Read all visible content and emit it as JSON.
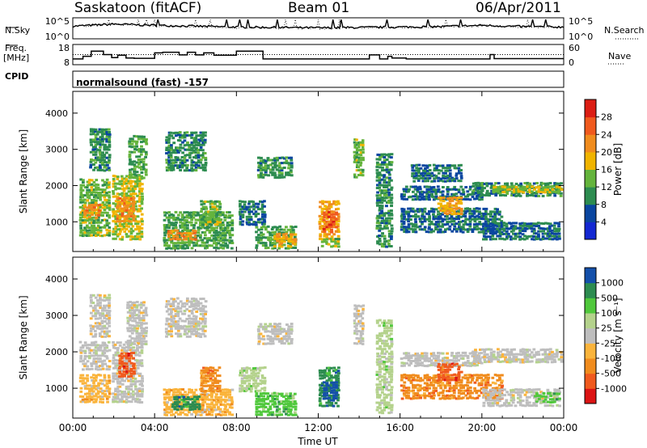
{
  "header": {
    "station": "Saskatoon (fitACF)",
    "beam": "Beam 01",
    "date": "06/Apr/2011"
  },
  "left_labels": {
    "nsky": "N.Sky",
    "freq": "Freq.",
    "freq_unit": "[MHz]",
    "cpid": "CPID"
  },
  "right_labels": {
    "nsearch": "N.Search",
    "nave": "Nave"
  },
  "cpid_text": "normalsound (fast) -157",
  "colors": {
    "power_scale": [
      "#1428d2",
      "#0a46a0",
      "#2d8c50",
      "#64b43c",
      "#f0b400",
      "#f08c1e",
      "#f05a1e",
      "#dc1e14"
    ],
    "velocity_scale": [
      "#dc1414",
      "#f05a1e",
      "#f08c1e",
      "#fab43c",
      "#bebebe",
      "#b4d28c",
      "#50c83c",
      "#2d8c50",
      "#1450aa"
    ]
  },
  "chart_data": [
    {
      "type": "line",
      "panel": "noise",
      "yticks": [
        "10^5",
        "10^0"
      ],
      "right_yticks": [
        "10^5",
        "10^0"
      ],
      "series": [
        {
          "name": "N.Sky",
          "x": [
            0,
            2,
            4,
            6,
            8,
            10,
            12,
            14,
            16,
            18,
            20,
            22,
            24
          ],
          "values": [
            3,
            3.5,
            3.2,
            3,
            2.8,
            2.7,
            2.6,
            2.7,
            2.8,
            2.9,
            3.2,
            2.9,
            2.8
          ]
        },
        {
          "name": "N.Search",
          "x": [
            0,
            2,
            4,
            6,
            8,
            10,
            12,
            14,
            16,
            18,
            20,
            22,
            24
          ],
          "values": [
            3,
            3.4,
            3.1,
            2.9,
            2.7,
            2.6,
            2.5,
            2.6,
            2.7,
            2.8,
            3.1,
            2.8,
            2.7
          ]
        }
      ]
    },
    {
      "type": "line",
      "panel": "frequency",
      "yticks": [
        "18",
        "8"
      ],
      "right_yticks": [
        "60",
        "0"
      ],
      "series": [
        {
          "name": "Freq.",
          "x": [
            0,
            0.5,
            0.9,
            1.5,
            1.9,
            2.2,
            2.6,
            3.0,
            3.8,
            4.0,
            4.4,
            5.2,
            5.6,
            6.0,
            6.4,
            6.9,
            8.0,
            9.3,
            11.0,
            13.4,
            14.5,
            15.0,
            15.4,
            15.6,
            16.3,
            20.4,
            20.6,
            22.5,
            24.0
          ],
          "values": [
            10.4,
            12.0,
            15.0,
            13.0,
            11.2,
            12.6,
            11.0,
            10.8,
            10.8,
            14.0,
            14.4,
            12.8,
            14.4,
            12.8,
            14.0,
            12.6,
            15.0,
            10.4,
            10.4,
            10.4,
            12.8,
            10.4,
            12.0,
            11.0,
            10.4,
            13.0,
            10.6,
            10.6,
            10.6
          ]
        },
        {
          "name": "Nave",
          "x": [
            0,
            24
          ],
          "values": [
            30,
            30
          ]
        }
      ]
    },
    {
      "type": "heatmap",
      "panel": "power",
      "xlabel": "",
      "ylabel": "Slant Range [km]",
      "xlim": [
        0,
        24
      ],
      "ylim": [
        180,
        4600
      ],
      "yticks": [
        1000,
        2000,
        3000,
        4000
      ],
      "colorbar_label": "Power [dB]",
      "colorbar_ticks": [
        "4",
        "8",
        "12",
        "16",
        "20",
        "24",
        "28"
      ],
      "colorbar_range": [
        0,
        32
      ],
      "blobs": [
        {
          "t": [
            0.3,
            1.8
          ],
          "r": [
            600,
            2200
          ],
          "v": 14
        },
        {
          "t": [
            0.8,
            1.8
          ],
          "r": [
            2400,
            3600
          ],
          "v": 10
        },
        {
          "t": [
            0.5,
            1.3
          ],
          "r": [
            1100,
            1500
          ],
          "v": 22
        },
        {
          "t": [
            1.9,
            3.4
          ],
          "r": [
            500,
            2300
          ],
          "v": 16
        },
        {
          "t": [
            2.1,
            3.0
          ],
          "r": [
            1000,
            1700
          ],
          "v": 22
        },
        {
          "t": [
            2.7,
            3.6
          ],
          "r": [
            2200,
            3400
          ],
          "v": 12
        },
        {
          "t": [
            4.4,
            7.8
          ],
          "r": [
            250,
            1300
          ],
          "v": 12
        },
        {
          "t": [
            4.6,
            6.0
          ],
          "r": [
            500,
            800
          ],
          "v": 22
        },
        {
          "t": [
            4.5,
            6.5
          ],
          "r": [
            2400,
            3500
          ],
          "v": 10
        },
        {
          "t": [
            6.2,
            7.2
          ],
          "r": [
            900,
            1600
          ],
          "v": 14
        },
        {
          "t": [
            8.1,
            9.4
          ],
          "r": [
            900,
            1600
          ],
          "v": 8
        },
        {
          "t": [
            8.9,
            10.9
          ],
          "r": [
            250,
            900
          ],
          "v": 12
        },
        {
          "t": [
            9.8,
            10.9
          ],
          "r": [
            300,
            700
          ],
          "v": 20
        },
        {
          "t": [
            9.0,
            10.7
          ],
          "r": [
            2200,
            2800
          ],
          "v": 10
        },
        {
          "t": [
            12.0,
            13.0
          ],
          "r": [
            500,
            1600
          ],
          "v": 20
        },
        {
          "t": [
            12.2,
            12.9
          ],
          "r": [
            700,
            1300
          ],
          "v": 26
        },
        {
          "t": [
            12.1,
            13.0
          ],
          "r": [
            300,
            550
          ],
          "v": 14
        },
        {
          "t": [
            13.7,
            14.2
          ],
          "r": [
            2200,
            3300
          ],
          "v": 14
        },
        {
          "t": [
            14.8,
            15.6
          ],
          "r": [
            300,
            2900
          ],
          "v": 10
        },
        {
          "t": [
            16.0,
            21.0
          ],
          "r": [
            700,
            1400
          ],
          "v": 8
        },
        {
          "t": [
            16.0,
            20.0
          ],
          "r": [
            1600,
            2000
          ],
          "v": 8
        },
        {
          "t": [
            17.8,
            19.0
          ],
          "r": [
            1200,
            1700
          ],
          "v": 20
        },
        {
          "t": [
            19.5,
            23.9
          ],
          "r": [
            1700,
            2100
          ],
          "v": 10
        },
        {
          "t": [
            20.5,
            23.9
          ],
          "r": [
            1800,
            2000
          ],
          "v": 16
        },
        {
          "t": [
            16.5,
            19.0
          ],
          "r": [
            2100,
            2600
          ],
          "v": 8
        },
        {
          "t": [
            20.0,
            23.8
          ],
          "r": [
            500,
            1000
          ],
          "v": 8
        }
      ]
    },
    {
      "type": "heatmap",
      "panel": "velocity",
      "xlabel": "Time UT",
      "ylabel": "Slant Range [km]",
      "xlim": [
        0,
        24
      ],
      "ylim": [
        180,
        4600
      ],
      "xticks": [
        "00:00",
        "04:00",
        "08:00",
        "12:00",
        "16:00",
        "20:00",
        "00:00"
      ],
      "yticks": [
        1000,
        2000,
        3000,
        4000
      ],
      "colorbar_label": "Velocity [m s⁻¹]",
      "colorbar_ticks": [
        "-1000",
        "-500",
        "-100",
        "-25",
        "25",
        "100",
        "500",
        "1000"
      ],
      "blobs": [
        {
          "t": [
            0.3,
            1.8
          ],
          "r": [
            600,
            1400
          ],
          "v": 3
        },
        {
          "t": [
            0.3,
            1.8
          ],
          "r": [
            1500,
            2300
          ],
          "v": 4
        },
        {
          "t": [
            0.8,
            1.8
          ],
          "r": [
            2400,
            3600
          ],
          "v": 4
        },
        {
          "t": [
            1.9,
            3.4
          ],
          "r": [
            600,
            2300
          ],
          "v": 4
        },
        {
          "t": [
            2.2,
            3.0
          ],
          "r": [
            1300,
            2000
          ],
          "v": 1
        },
        {
          "t": [
            2.6,
            3.6
          ],
          "r": [
            2200,
            3400
          ],
          "v": 4
        },
        {
          "t": [
            4.4,
            7.8
          ],
          "r": [
            250,
            1000
          ],
          "v": 3
        },
        {
          "t": [
            4.8,
            6.2
          ],
          "r": [
            400,
            800
          ],
          "v": 7
        },
        {
          "t": [
            4.5,
            6.5
          ],
          "r": [
            2400,
            3500
          ],
          "v": 4
        },
        {
          "t": [
            6.2,
            7.2
          ],
          "r": [
            900,
            1600
          ],
          "v": 2
        },
        {
          "t": [
            8.1,
            9.4
          ],
          "r": [
            900,
            1600
          ],
          "v": 5
        },
        {
          "t": [
            8.9,
            10.9
          ],
          "r": [
            250,
            900
          ],
          "v": 6
        },
        {
          "t": [
            9.0,
            10.7
          ],
          "r": [
            2200,
            2800
          ],
          "v": 4
        },
        {
          "t": [
            12.0,
            13.0
          ],
          "r": [
            500,
            1600
          ],
          "v": 7
        },
        {
          "t": [
            12.2,
            12.9
          ],
          "r": [
            700,
            1200
          ],
          "v": 8
        },
        {
          "t": [
            13.7,
            14.2
          ],
          "r": [
            2200,
            3300
          ],
          "v": 4
        },
        {
          "t": [
            14.8,
            15.6
          ],
          "r": [
            300,
            2900
          ],
          "v": 5
        },
        {
          "t": [
            16.0,
            21.0
          ],
          "r": [
            700,
            1400
          ],
          "v": 2
        },
        {
          "t": [
            16.0,
            20.0
          ],
          "r": [
            1600,
            2000
          ],
          "v": 4
        },
        {
          "t": [
            17.8,
            19.0
          ],
          "r": [
            1200,
            1700
          ],
          "v": 1
        },
        {
          "t": [
            19.5,
            23.9
          ],
          "r": [
            1700,
            2100
          ],
          "v": 4
        },
        {
          "t": [
            20.0,
            23.8
          ],
          "r": [
            500,
            1000
          ],
          "v": 4
        },
        {
          "t": [
            22.5,
            23.8
          ],
          "r": [
            600,
            900
          ],
          "v": 6
        }
      ]
    }
  ]
}
